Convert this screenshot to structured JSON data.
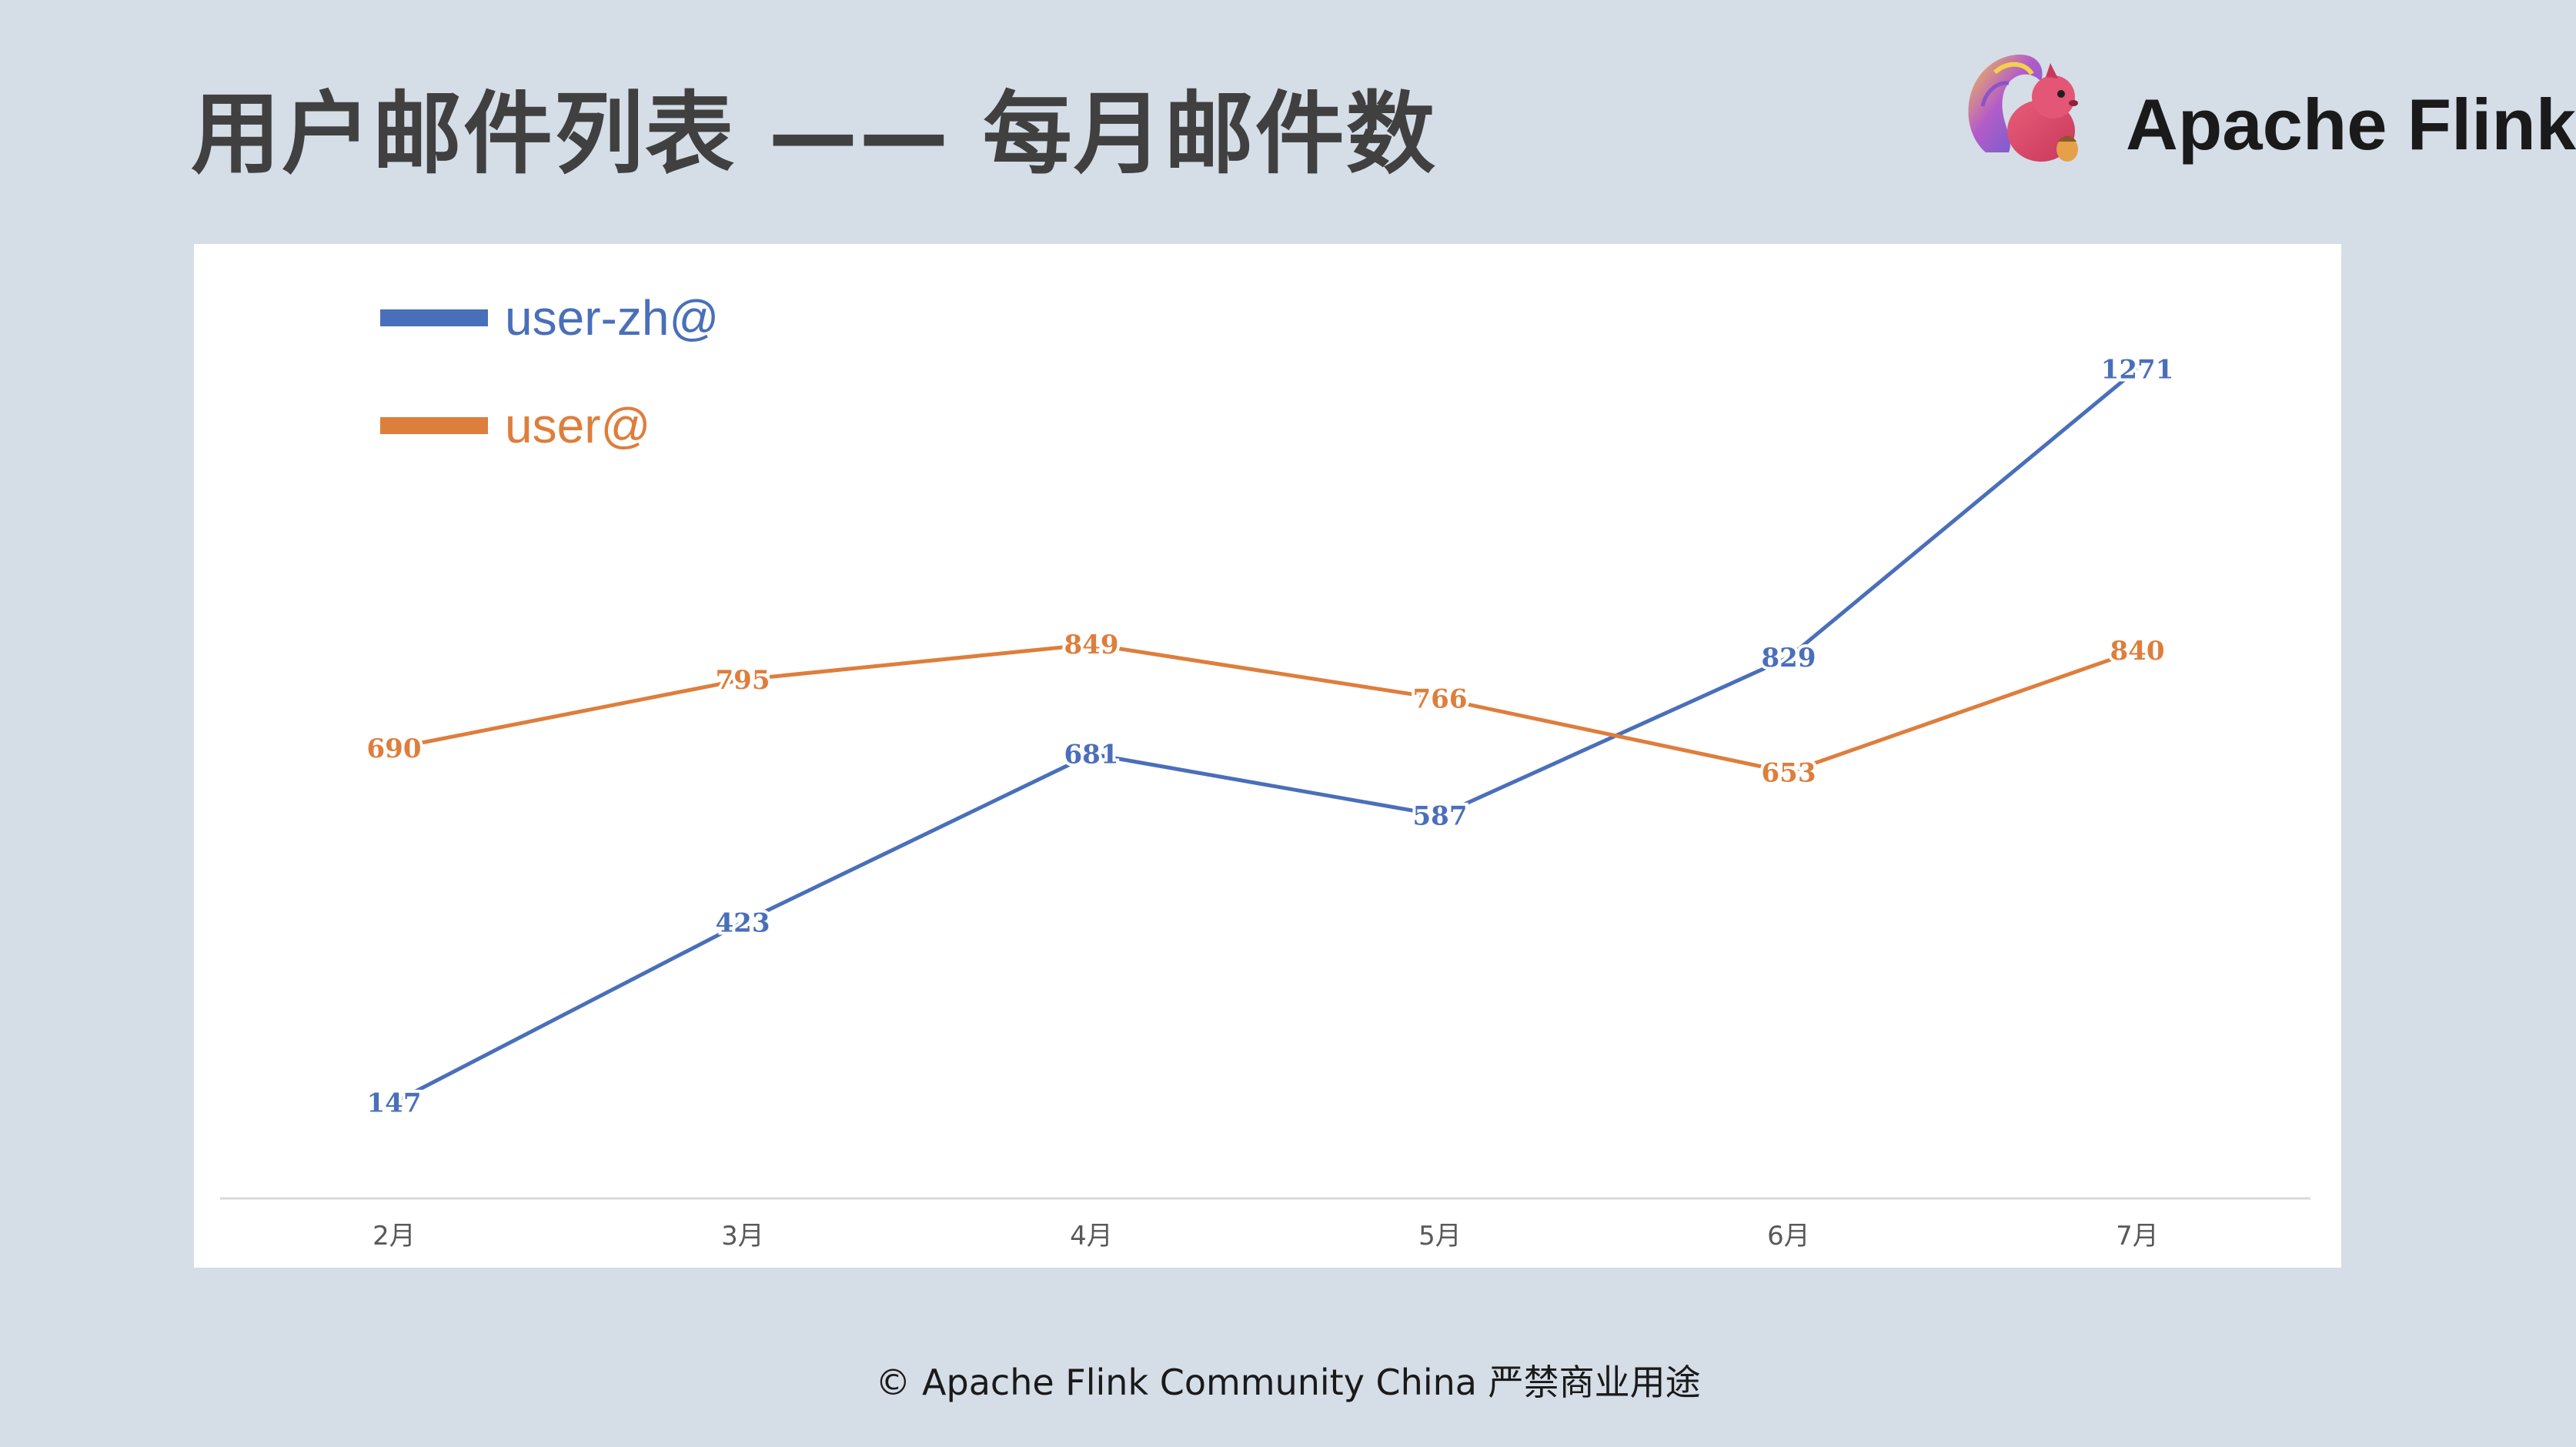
{
  "slide": {
    "title": "用户邮件列表 —— 每月邮件数",
    "brand_name": "Apache Flink",
    "footer": "© Apache Flink Community China  严禁商业用途"
  },
  "chart_data": {
    "type": "line",
    "title": "",
    "xlabel": "",
    "ylabel": "",
    "categories": [
      "2月",
      "3月",
      "4月",
      "5月",
      "6月",
      "7月"
    ],
    "ylim": [
      0,
      1380
    ],
    "grid": false,
    "legend_position": "top-left",
    "series": [
      {
        "name": "user-zh@",
        "color": "#4a6fba",
        "values": [
          147,
          423,
          681,
          587,
          829,
          1271
        ]
      },
      {
        "name": "user@",
        "color": "#de7e3c",
        "values": [
          690,
          795,
          849,
          766,
          653,
          840
        ]
      }
    ]
  }
}
